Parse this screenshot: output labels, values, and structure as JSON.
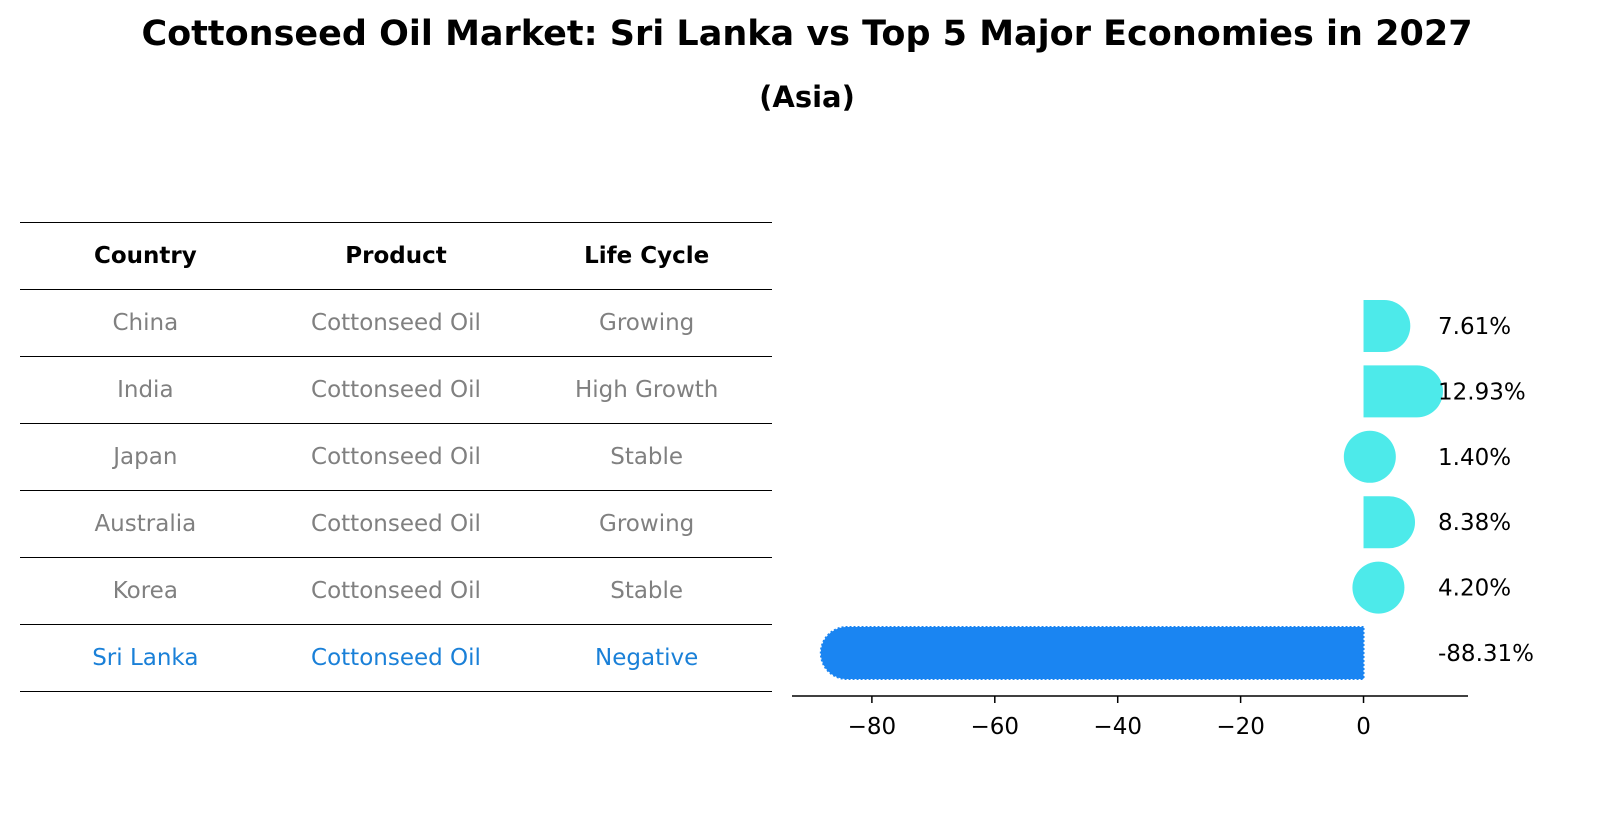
{
  "title": "Cottonseed Oil Market: Sri Lanka vs Top 5 Major Economies in 2027",
  "subtitle": "(Asia)",
  "table": {
    "headers": [
      "Country",
      "Product",
      "Life Cycle"
    ],
    "rows": [
      {
        "country": "China",
        "product": "Cottonseed Oil",
        "life_cycle": "Growing"
      },
      {
        "country": "India",
        "product": "Cottonseed Oil",
        "life_cycle": "High Growth"
      },
      {
        "country": "Japan",
        "product": "Cottonseed Oil",
        "life_cycle": "Stable"
      },
      {
        "country": "Australia",
        "product": "Cottonseed Oil",
        "life_cycle": "Growing"
      },
      {
        "country": "Korea",
        "product": "Cottonseed Oil",
        "life_cycle": "Stable"
      },
      {
        "country": "Sri Lanka",
        "product": "Cottonseed Oil",
        "life_cycle": "Negative"
      }
    ],
    "highlight_row": 5
  },
  "colors": {
    "bar": "#4deaea",
    "highlight_bar": "#1a85f2",
    "row_text": "#808080",
    "highlight_text": "#1a80d8"
  },
  "chart_data": {
    "type": "bar",
    "orientation": "horizontal",
    "categories": [
      "China",
      "India",
      "Japan",
      "Australia",
      "Korea",
      "Sri Lanka"
    ],
    "values": [
      7.61,
      12.93,
      1.4,
      8.38,
      4.2,
      -88.31
    ],
    "value_labels": [
      "7.61%",
      "12.93%",
      "1.40%",
      "8.38%",
      "4.20%",
      "-88.31%"
    ],
    "xlim": [
      -93,
      17
    ],
    "xticks": [
      -80,
      -60,
      -40,
      -20,
      0
    ],
    "xtick_labels": [
      "−80",
      "−60",
      "−40",
      "−20",
      "0"
    ],
    "grid": false,
    "bar_style": "rounded"
  }
}
